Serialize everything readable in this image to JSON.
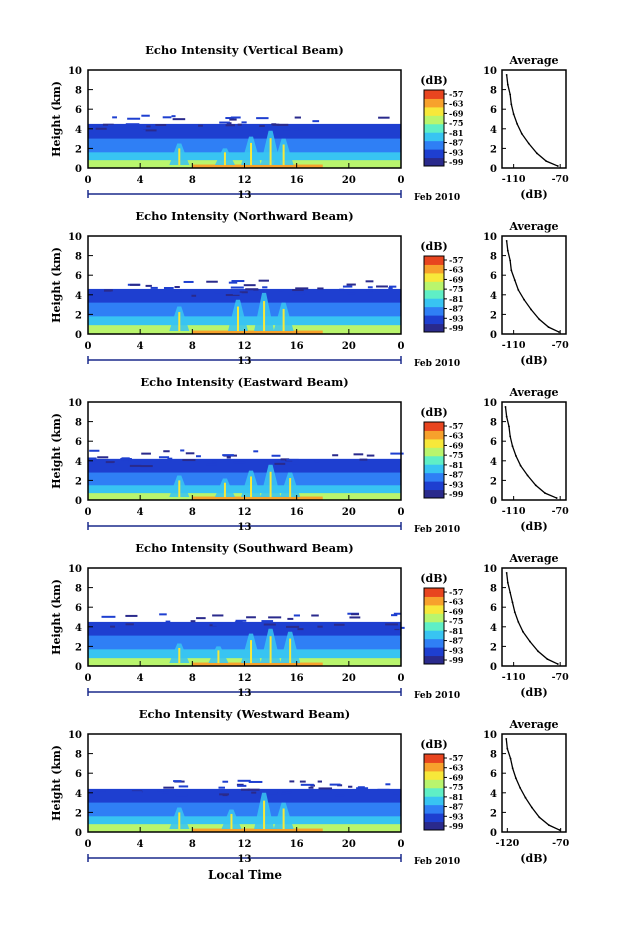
{
  "chart_data": [
    {
      "type": "heatmap",
      "title": "Echo Intensity (Vertical Beam)",
      "ylabel": "Height (km)",
      "ylim": [
        0,
        10
      ],
      "yticks": [
        "0",
        "2",
        "4",
        "6",
        "8",
        "10"
      ],
      "xlim": [
        0,
        24
      ],
      "xticks": [
        "0",
        "4",
        "8",
        "12",
        "16",
        "20",
        "0"
      ],
      "date_marker": "13",
      "date_label": "Feb 2010",
      "colorbar": {
        "label": "(dB)",
        "ticks": [
          "-57",
          "-63",
          "-69",
          "-75",
          "-81",
          "-87",
          "-93",
          "-99"
        ]
      },
      "layers": [
        {
          "top_km": 4.5,
          "level": -96
        },
        {
          "top_km": 3.0,
          "level": -90
        },
        {
          "top_km": 1.6,
          "level": -82
        },
        {
          "top_km": 0.8,
          "level": -74
        }
      ],
      "plumes": [
        {
          "time_h": 7.0,
          "top_km": 2.5
        },
        {
          "time_h": 10.5,
          "top_km": 2.0
        },
        {
          "time_h": 12.5,
          "top_km": 3.2
        },
        {
          "time_h": 14.0,
          "top_km": 3.8
        },
        {
          "time_h": 15.0,
          "top_km": 3.0
        }
      ]
    },
    {
      "type": "heatmap",
      "title": "Echo Intensity (Northward Beam)",
      "ylabel": "Height (km)",
      "ylim": [
        0,
        10
      ],
      "yticks": [
        "0",
        "2",
        "4",
        "6",
        "8",
        "10"
      ],
      "xlim": [
        0,
        24
      ],
      "xticks": [
        "0",
        "4",
        "8",
        "12",
        "16",
        "20",
        "0"
      ],
      "date_marker": "13",
      "date_label": "Feb 2010",
      "colorbar": {
        "label": "(dB)",
        "ticks": [
          "-57",
          "-63",
          "-69",
          "-75",
          "-81",
          "-87",
          "-93",
          "-99"
        ]
      },
      "layers": [
        {
          "top_km": 4.6,
          "level": -96
        },
        {
          "top_km": 3.2,
          "level": -90
        },
        {
          "top_km": 1.8,
          "level": -82
        },
        {
          "top_km": 0.9,
          "level": -74
        }
      ],
      "plumes": [
        {
          "time_h": 7.0,
          "top_km": 2.8
        },
        {
          "time_h": 11.5,
          "top_km": 3.5
        },
        {
          "time_h": 13.5,
          "top_km": 4.2
        },
        {
          "time_h": 15.0,
          "top_km": 3.2
        }
      ]
    },
    {
      "type": "heatmap",
      "title": "Echo Intensity (Eastward Beam)",
      "ylabel": "Height (km)",
      "ylim": [
        0,
        10
      ],
      "yticks": [
        "0",
        "2",
        "4",
        "6",
        "8",
        "10"
      ],
      "xlim": [
        0,
        24
      ],
      "xticks": [
        "0",
        "4",
        "8",
        "12",
        "16",
        "20",
        "0"
      ],
      "date_marker": "13",
      "date_label": "Feb 2010",
      "colorbar": {
        "label": "(dB)",
        "ticks": [
          "-57",
          "-63",
          "-69",
          "-75",
          "-81",
          "-87",
          "-93",
          "-99"
        ]
      },
      "layers": [
        {
          "top_km": 4.2,
          "level": -96
        },
        {
          "top_km": 2.8,
          "level": -90
        },
        {
          "top_km": 1.5,
          "level": -82
        },
        {
          "top_km": 0.7,
          "level": -74
        }
      ],
      "plumes": [
        {
          "time_h": 7.0,
          "top_km": 2.5
        },
        {
          "time_h": 10.5,
          "top_km": 2.2
        },
        {
          "time_h": 12.5,
          "top_km": 3.0
        },
        {
          "time_h": 14.0,
          "top_km": 3.6
        },
        {
          "time_h": 15.5,
          "top_km": 2.8
        }
      ]
    },
    {
      "type": "heatmap",
      "title": "Echo Intensity (Southward Beam)",
      "ylabel": "Height (km)",
      "ylim": [
        0,
        10
      ],
      "yticks": [
        "0",
        "2",
        "4",
        "6",
        "8",
        "10"
      ],
      "xlim": [
        0,
        24
      ],
      "xticks": [
        "0",
        "4",
        "8",
        "12",
        "16",
        "20",
        "0"
      ],
      "date_marker": "13",
      "date_label": "Feb 2010",
      "colorbar": {
        "label": "(dB)",
        "ticks": [
          "-57",
          "-63",
          "-69",
          "-75",
          "-81",
          "-87",
          "-93",
          "-99"
        ]
      },
      "layers": [
        {
          "top_km": 4.5,
          "level": -96
        },
        {
          "top_km": 3.1,
          "level": -90
        },
        {
          "top_km": 1.7,
          "level": -82
        },
        {
          "top_km": 0.8,
          "level": -74
        }
      ],
      "plumes": [
        {
          "time_h": 7.0,
          "top_km": 2.3
        },
        {
          "time_h": 10.0,
          "top_km": 2.0
        },
        {
          "time_h": 12.5,
          "top_km": 3.3
        },
        {
          "time_h": 14.0,
          "top_km": 3.8
        },
        {
          "time_h": 15.5,
          "top_km": 3.5
        }
      ]
    },
    {
      "type": "heatmap",
      "title": "Echo Intensity (Westward Beam)",
      "ylabel": "Height (km)",
      "ylim": [
        0,
        10
      ],
      "yticks": [
        "0",
        "2",
        "4",
        "6",
        "8",
        "10"
      ],
      "xlim": [
        0,
        24
      ],
      "xticks": [
        "0",
        "4",
        "8",
        "12",
        "16",
        "20",
        "0"
      ],
      "date_marker": "13",
      "date_label": "Feb 2010",
      "colorbar": {
        "label": "(dB)",
        "ticks": [
          "-57",
          "-63",
          "-69",
          "-75",
          "-81",
          "-87",
          "-93",
          "-99"
        ]
      },
      "layers": [
        {
          "top_km": 4.4,
          "level": -96
        },
        {
          "top_km": 3.0,
          "level": -90
        },
        {
          "top_km": 1.6,
          "level": -82
        },
        {
          "top_km": 0.8,
          "level": -74
        }
      ],
      "plumes": [
        {
          "time_h": 7.0,
          "top_km": 2.5
        },
        {
          "time_h": 11.0,
          "top_km": 2.3
        },
        {
          "time_h": 13.5,
          "top_km": 4.0
        },
        {
          "time_h": 15.0,
          "top_km": 3.0
        }
      ]
    }
  ],
  "profiles": [
    {
      "type": "line",
      "title": "Average",
      "xlabel": "(dB)",
      "xticks": [
        "-110",
        "-70"
      ],
      "xlim": [
        -120,
        -65
      ],
      "ylim": [
        0,
        10
      ],
      "yticks": [
        "0",
        "2",
        "4",
        "6",
        "8",
        "10"
      ],
      "points": [
        [
          -116,
          9.5
        ],
        [
          -115,
          8.5
        ],
        [
          -113,
          7.5
        ],
        [
          -112,
          6.5
        ],
        [
          -110,
          5.5
        ],
        [
          -107,
          4.5
        ],
        [
          -103,
          3.5
        ],
        [
          -97,
          2.5
        ],
        [
          -90,
          1.5
        ],
        [
          -82,
          0.7
        ],
        [
          -72,
          0.2
        ]
      ]
    },
    {
      "type": "line",
      "title": "Average",
      "xlabel": "(dB)",
      "xticks": [
        "-110",
        "-70"
      ],
      "xlim": [
        -120,
        -65
      ],
      "ylim": [
        0,
        10
      ],
      "yticks": [
        "0",
        "2",
        "4",
        "6",
        "8",
        "10"
      ],
      "points": [
        [
          -116,
          9.5
        ],
        [
          -115,
          8.5
        ],
        [
          -113,
          7.5
        ],
        [
          -112,
          6.5
        ],
        [
          -109,
          5.5
        ],
        [
          -106,
          4.5
        ],
        [
          -101,
          3.5
        ],
        [
          -95,
          2.5
        ],
        [
          -88,
          1.5
        ],
        [
          -80,
          0.7
        ],
        [
          -71,
          0.2
        ]
      ]
    },
    {
      "type": "line",
      "title": "Average",
      "xlabel": "(dB)",
      "xticks": [
        "-110",
        "-70"
      ],
      "xlim": [
        -120,
        -65
      ],
      "ylim": [
        0,
        10
      ],
      "yticks": [
        "0",
        "2",
        "4",
        "6",
        "8",
        "10"
      ],
      "points": [
        [
          -117,
          9.5
        ],
        [
          -116,
          8.5
        ],
        [
          -114,
          7.5
        ],
        [
          -113,
          6.5
        ],
        [
          -111,
          5.5
        ],
        [
          -108,
          4.5
        ],
        [
          -104,
          3.5
        ],
        [
          -98,
          2.5
        ],
        [
          -91,
          1.5
        ],
        [
          -83,
          0.7
        ],
        [
          -73,
          0.2
        ]
      ]
    },
    {
      "type": "line",
      "title": "Average",
      "xlabel": "(dB)",
      "xticks": [
        "-110",
        "-70"
      ],
      "xlim": [
        -120,
        -65
      ],
      "ylim": [
        0,
        10
      ],
      "yticks": [
        "0",
        "2",
        "4",
        "6",
        "8",
        "10"
      ],
      "points": [
        [
          -116,
          9.5
        ],
        [
          -115,
          8.5
        ],
        [
          -113,
          7.5
        ],
        [
          -111,
          6.5
        ],
        [
          -109,
          5.5
        ],
        [
          -106,
          4.5
        ],
        [
          -102,
          3.5
        ],
        [
          -96,
          2.5
        ],
        [
          -89,
          1.5
        ],
        [
          -81,
          0.7
        ],
        [
          -72,
          0.2
        ]
      ]
    },
    {
      "type": "line",
      "title": "Average",
      "xlabel": "(dB)",
      "xticks": [
        "-120",
        "-70"
      ],
      "xlim": [
        -125,
        -65
      ],
      "ylim": [
        0,
        10
      ],
      "yticks": [
        "0",
        "2",
        "4",
        "6",
        "8",
        "10"
      ],
      "points": [
        [
          -121,
          9.5
        ],
        [
          -120,
          8.5
        ],
        [
          -117,
          7.5
        ],
        [
          -115,
          6.5
        ],
        [
          -112,
          5.5
        ],
        [
          -108,
          4.5
        ],
        [
          -103,
          3.5
        ],
        [
          -97,
          2.5
        ],
        [
          -90,
          1.5
        ],
        [
          -81,
          0.7
        ],
        [
          -71,
          0.2
        ]
      ]
    }
  ],
  "footer": {
    "xlabel": "Local Time"
  },
  "colors": {
    "colormap": [
      "#2a2a8c",
      "#1e3fd0",
      "#2f7ff5",
      "#38c4f2",
      "#5fefc6",
      "#b9f56d",
      "#f7e83a",
      "#f7a12c",
      "#e8451f"
    ],
    "background": "#ffffff",
    "axis": "#000000"
  }
}
